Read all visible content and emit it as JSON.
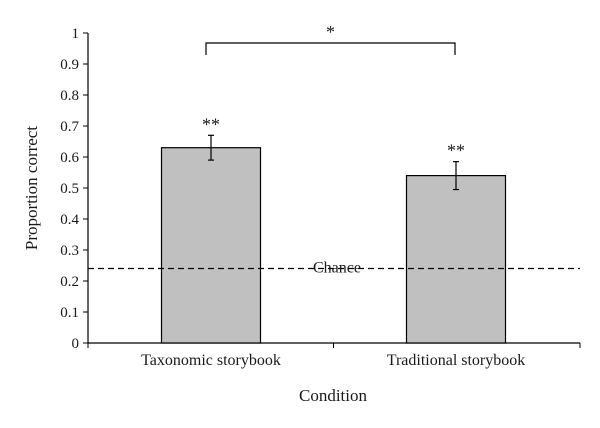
{
  "chart_data": {
    "type": "bar",
    "title": "",
    "xlabel": "Condition",
    "ylabel": "Proportion correct",
    "categories": [
      "Taxonomic storybook",
      "Traditional storybook"
    ],
    "values": [
      0.63,
      0.54
    ],
    "error": [
      0.04,
      0.045
    ],
    "ylim": [
      0,
      1
    ],
    "yticks": [
      "0",
      "0.1",
      "0.2",
      "0.3",
      "0.4",
      "0.5",
      "0.6",
      "0.7",
      "0.8",
      "0.9",
      "1"
    ],
    "grid": false,
    "bar_color": "#c0c0c0",
    "bar_stroke": "#000000",
    "bar_significance": [
      "**",
      "**"
    ],
    "comparison_significance": "*",
    "reference_line": {
      "label": "Chance",
      "value": 0.25,
      "style": "dashed"
    }
  }
}
